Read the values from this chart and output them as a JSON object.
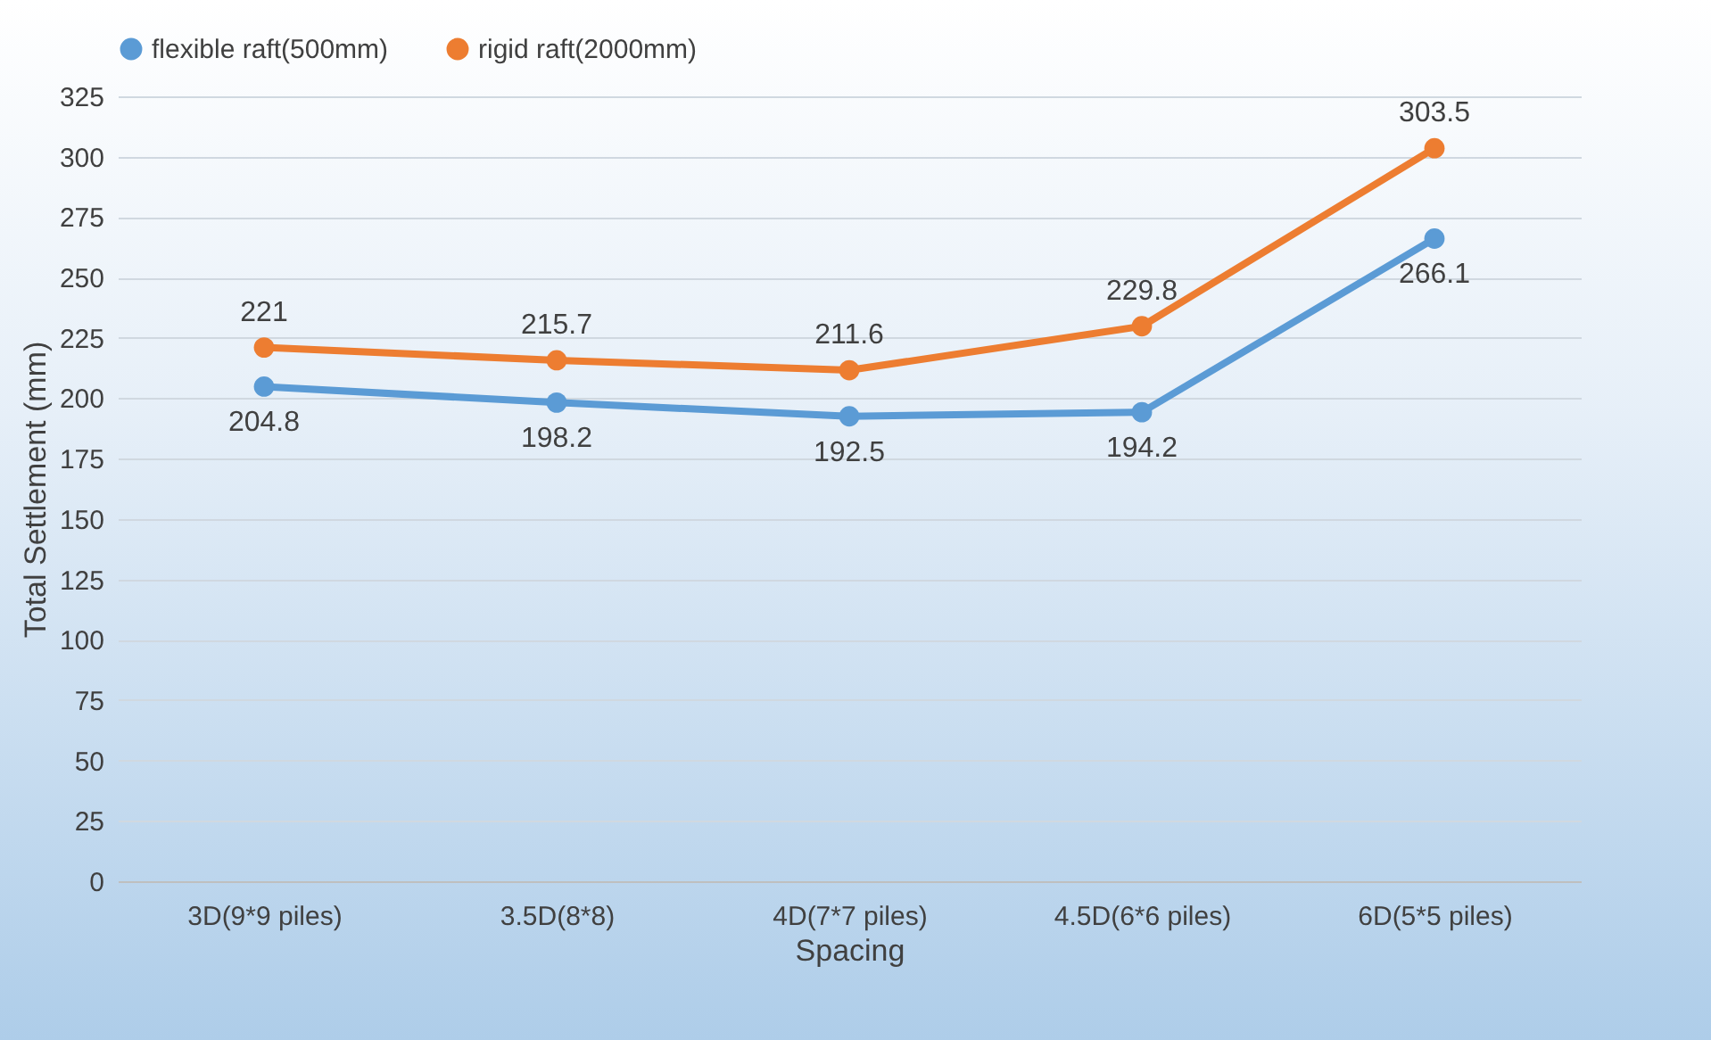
{
  "chart_data": {
    "type": "line",
    "xlabel": "Spacing",
    "ylabel": "Total Settlement (mm)",
    "categories": [
      "3D(9*9 piles)",
      "3.5D(8*8)",
      "4D(7*7 piles)",
      "4.5D(6*6 piles)",
      "6D(5*5 piles)"
    ],
    "series": [
      {
        "name": "flexible raft(500mm)",
        "color": "#5b9bd5",
        "values": [
          204.8,
          198.2,
          192.5,
          194.2,
          266.1
        ]
      },
      {
        "name": "rigid raft(2000mm)",
        "color": "#ed7d31",
        "values": [
          221,
          215.7,
          211.6,
          229.8,
          303.5
        ]
      }
    ],
    "ylim": [
      0,
      325
    ],
    "yticks": [
      0,
      25,
      50,
      75,
      100,
      125,
      150,
      175,
      200,
      225,
      250,
      275,
      300,
      325
    ],
    "grid": "y",
    "legend": "top",
    "marker": "circle",
    "line_style": "solid",
    "data_labels": true
  }
}
